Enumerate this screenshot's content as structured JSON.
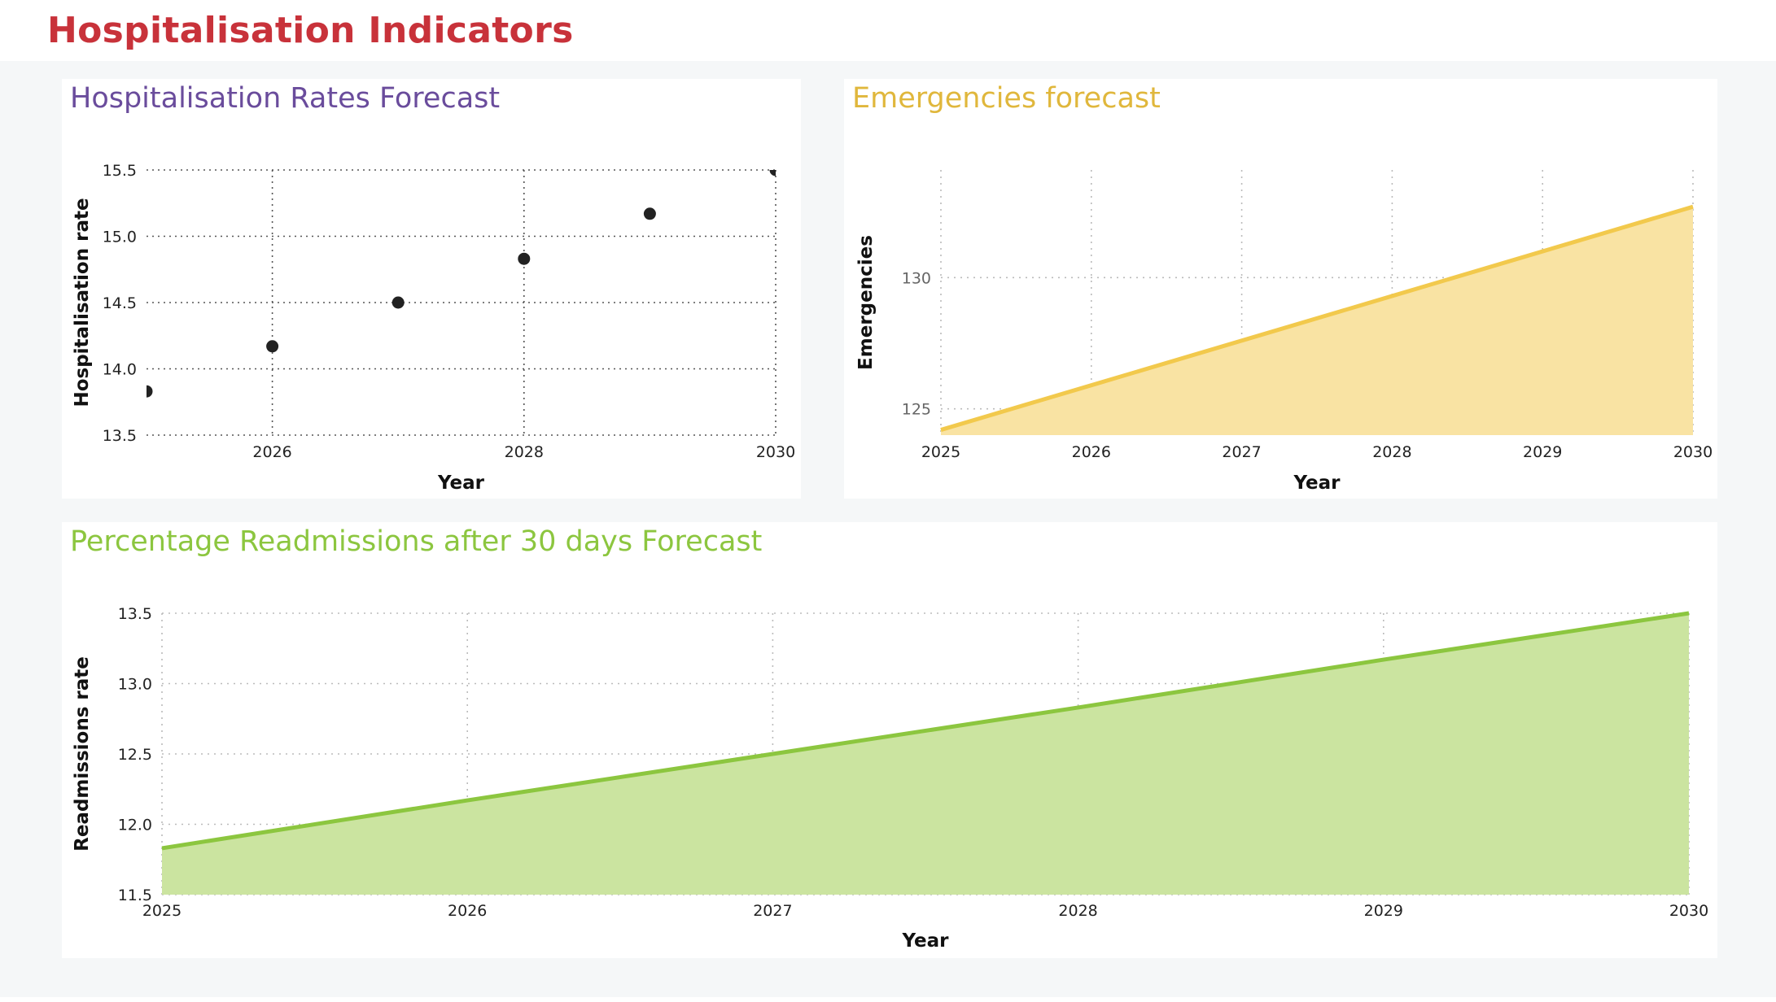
{
  "page": {
    "title": "Hospitalisation Indicators",
    "title_color": "#c8323a",
    "background": "#f5f7f8"
  },
  "cards": {
    "hosp": {
      "title": "Hospitalisation Rates Forecast",
      "title_color": "#6a4c9c"
    },
    "emerg": {
      "title": "Emergencies forecast",
      "title_color": "#e0b73c"
    },
    "readm": {
      "title": "Percentage Readmissions after 30 days Forecast",
      "title_color": "#8cc63f"
    }
  },
  "chart_data": [
    {
      "id": "hosp",
      "type": "scatter",
      "xlabel": "Year",
      "ylabel": "Hospitalisation rate",
      "x": [
        2025,
        2026,
        2027,
        2028,
        2029,
        2030
      ],
      "y": [
        13.83,
        14.17,
        14.5,
        14.83,
        15.17,
        15.5
      ],
      "xlim": [
        2025,
        2030
      ],
      "ylim": [
        13.5,
        15.5
      ],
      "xticks": [
        2026,
        2028,
        2030
      ],
      "yticks": [
        13.5,
        14.0,
        14.5,
        15.0,
        15.5
      ],
      "xtick_labels": [
        "2026",
        "2028",
        "2030"
      ],
      "ytick_labels": [
        "13.5",
        "14.0",
        "14.5",
        "15.0",
        "15.5"
      ],
      "grid": true,
      "marker_color": "#222222"
    },
    {
      "id": "emerg",
      "type": "area",
      "xlabel": "Year",
      "ylabel": "Emergencies",
      "x": [
        2025,
        2026,
        2027,
        2028,
        2029,
        2030
      ],
      "y": [
        124.2,
        125.9,
        127.6,
        129.3,
        131.0,
        132.7
      ],
      "xlim": [
        2025,
        2030
      ],
      "ylim": [
        124.0,
        134.1
      ],
      "xticks": [
        2025,
        2026,
        2027,
        2028,
        2029,
        2030
      ],
      "yticks": [
        125,
        130
      ],
      "xtick_labels": [
        "2025",
        "2026",
        "2027",
        "2028",
        "2029",
        "2030"
      ],
      "ytick_labels": [
        "125",
        "130"
      ],
      "grid": true,
      "line_color": "#f2c94c",
      "fill_color": "#f9e3a3"
    },
    {
      "id": "readm",
      "type": "area",
      "xlabel": "Year",
      "ylabel": "Readmissions rate",
      "x": [
        2025,
        2026,
        2027,
        2028,
        2029,
        2030
      ],
      "y": [
        11.83,
        12.17,
        12.5,
        12.83,
        13.17,
        13.5
      ],
      "xlim": [
        2025,
        2030
      ],
      "ylim": [
        11.5,
        13.5
      ],
      "xticks": [
        2025,
        2026,
        2027,
        2028,
        2029,
        2030
      ],
      "yticks": [
        11.5,
        12.0,
        12.5,
        13.0,
        13.5
      ],
      "xtick_labels": [
        "2025",
        "2026",
        "2027",
        "2028",
        "2029",
        "2030"
      ],
      "ytick_labels": [
        "11.5",
        "12.0",
        "12.5",
        "13.0",
        "13.5"
      ],
      "grid": true,
      "line_color": "#8cc63f",
      "fill_color": "#cbe4a0"
    }
  ]
}
